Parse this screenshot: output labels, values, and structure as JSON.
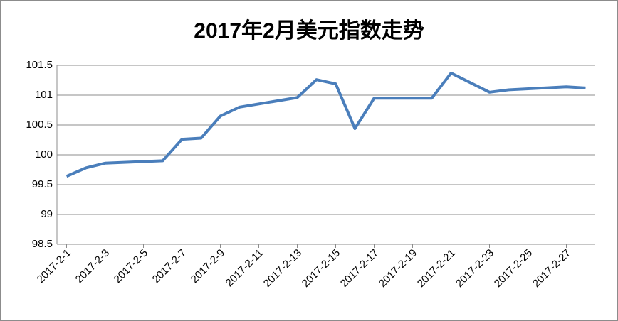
{
  "chart_data": {
    "type": "line",
    "title": "2017年2月美元指数走势",
    "x": [
      1,
      2,
      3,
      6,
      7,
      8,
      9,
      10,
      13,
      14,
      15,
      16,
      17,
      20,
      21,
      23,
      24,
      27,
      28
    ],
    "series": [
      {
        "name": "美元指数",
        "color": "#4a7ebb",
        "values": [
          99.64,
          99.78,
          99.86,
          99.9,
          100.26,
          100.28,
          100.65,
          100.8,
          100.96,
          101.26,
          101.19,
          100.44,
          100.95,
          100.95,
          101.37,
          101.05,
          101.09,
          101.14,
          101.12
        ]
      }
    ],
    "xlim": [
      0.5,
      28.5
    ],
    "xticks": [
      {
        "value": 1,
        "label": "2017-2-1"
      },
      {
        "value": 3,
        "label": "2017-2-3"
      },
      {
        "value": 5,
        "label": "2017-2-5"
      },
      {
        "value": 7,
        "label": "2017-2-7"
      },
      {
        "value": 9,
        "label": "2017-2-9"
      },
      {
        "value": 11,
        "label": "2017-2-11"
      },
      {
        "value": 13,
        "label": "2017-2-13"
      },
      {
        "value": 15,
        "label": "2017-2-15"
      },
      {
        "value": 17,
        "label": "2017-2-17"
      },
      {
        "value": 19,
        "label": "2017-2-19"
      },
      {
        "value": 21,
        "label": "2017-2-21"
      },
      {
        "value": 23,
        "label": "2017-2-23"
      },
      {
        "value": 25,
        "label": "2017-2-25"
      },
      {
        "value": 27,
        "label": "2017-2-27"
      }
    ],
    "ylim": [
      98.5,
      101.5
    ],
    "yticks": [
      98.5,
      99,
      99.5,
      100,
      100.5,
      101,
      101.5
    ],
    "grid": true
  }
}
